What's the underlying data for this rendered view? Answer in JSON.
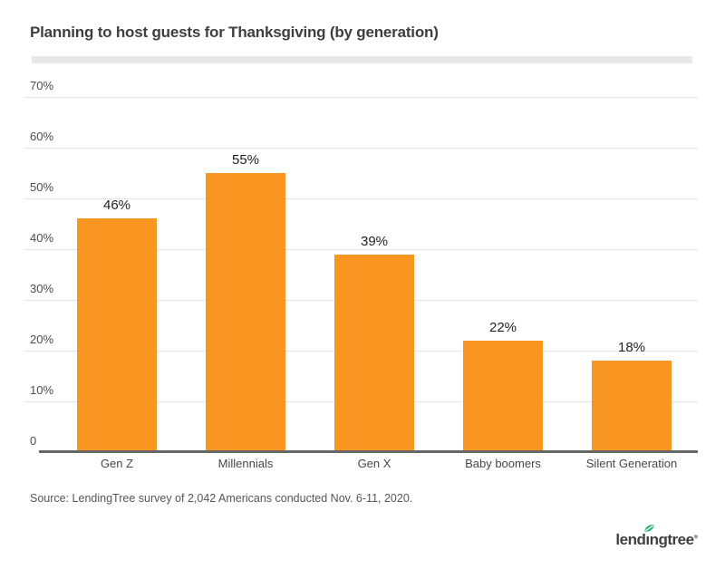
{
  "title": "Planning to host guests for Thanksgiving (by generation)",
  "source": "Source: LendingTree survey of 2,042 Americans conducted Nov. 6-11, 2020.",
  "logo": {
    "text_before": "lend",
    "text_i": "ı",
    "text_after": "ngtree",
    "reg_mark": "®",
    "leaf_color": "#27b279",
    "text_color": "#404040"
  },
  "colors": {
    "bar": "#f89621",
    "gridline": "#e3e3e3",
    "axis_line": "#666666",
    "divider": "#e8e8e8",
    "title_text": "#3e3e3e",
    "data_label": "#222222",
    "axis_label": "#4d4d4d",
    "source_text": "#565656"
  },
  "chart_data": {
    "type": "bar",
    "title": "Planning to host guests for Thanksgiving (by generation)",
    "categories": [
      "Gen Z",
      "Millennials",
      "Gen X",
      "Baby boomers",
      "Silent Generation"
    ],
    "values": [
      46,
      55,
      39,
      22,
      18
    ],
    "data_labels": [
      "46%",
      "55%",
      "39%",
      "22%",
      "18%"
    ],
    "xlabel": "",
    "ylabel": "",
    "ylim": [
      0,
      70
    ],
    "ytick_interval": 10,
    "ytick_labels": [
      "0",
      "10%",
      "20%",
      "30%",
      "40%",
      "50%",
      "60%",
      "70%"
    ],
    "grid": true,
    "legend": false,
    "bar_color": "#f89621"
  }
}
